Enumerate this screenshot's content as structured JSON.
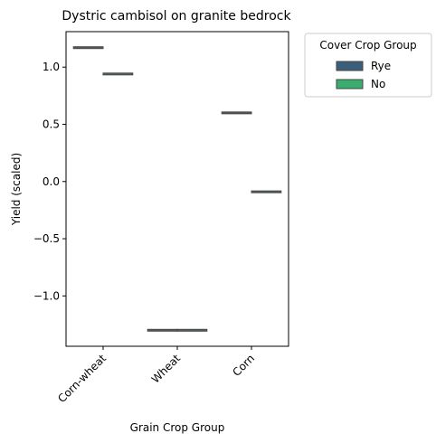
{
  "chart_data": {
    "type": "box",
    "title": "Dystric cambisol on granite bedrock",
    "xlabel": "Grain Crop Group",
    "ylabel": "Yield (scaled)",
    "categories": [
      "Corn-wheat",
      "Wheat",
      "Corn"
    ],
    "ylim": [
      -1.44,
      1.31
    ],
    "yticks": [
      1.0,
      0.5,
      0.0,
      -0.5,
      -1.0
    ],
    "ytick_labels": [
      "1.0",
      "0.5",
      "0.0",
      "−0.5",
      "−1.0"
    ],
    "grid": false,
    "legend": {
      "title": "Cover Crop Group",
      "placement": "outside-right-top"
    },
    "series": [
      {
        "name": "Rye",
        "color": "#3b5f7a",
        "values": [
          1.17,
          -1.3,
          0.6
        ]
      },
      {
        "name": "No",
        "color": "#3aac6e",
        "values": [
          0.94,
          -1.3,
          -0.09
        ]
      }
    ]
  }
}
